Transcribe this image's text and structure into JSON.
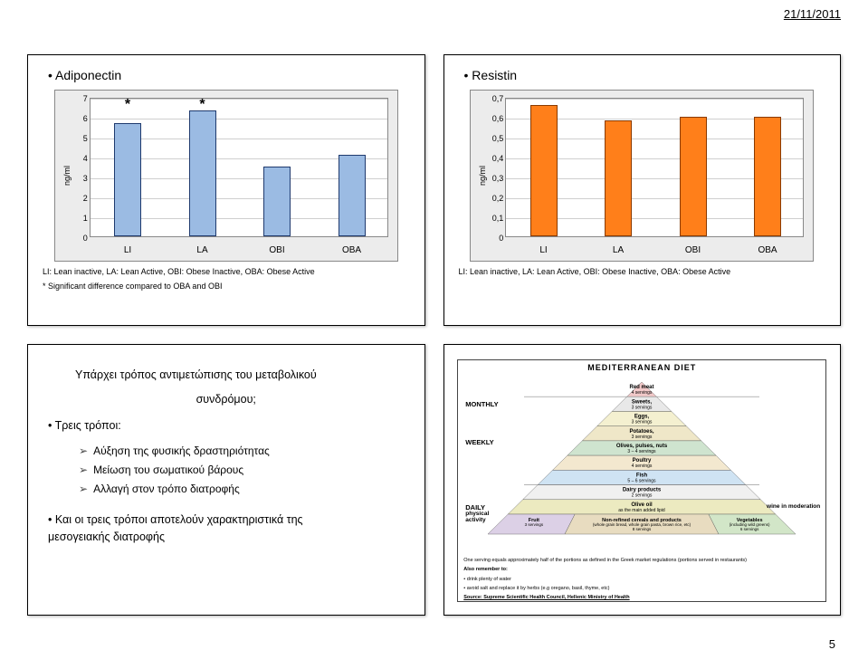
{
  "header_date": "21/11/2011",
  "page_number": "5",
  "slide_top_left": {
    "title": "Adiponectin",
    "ylabel": "ng/ml",
    "ylim": [
      0,
      7
    ],
    "ytick_step": 1,
    "categories": [
      "LI",
      "LA",
      "OBI",
      "OBA"
    ],
    "values": [
      5.7,
      6.3,
      3.5,
      4.1
    ],
    "bar_color": "#9bbbe3",
    "bar_border": "#1f3a6e",
    "stars_at": [
      0,
      1
    ],
    "caption_1": "LI: Lean inactive, LA: Lean Active, OBI: Obese Inactive, OBA: Obese Active",
    "caption_2": "* Significant difference compared to OBA and OBI"
  },
  "slide_top_right": {
    "title": "Resistin",
    "ylabel": "ng/ml",
    "ylim": [
      0,
      0.7
    ],
    "ytick_step": 0.1,
    "ytick_labels": [
      "0",
      "0,1",
      "0,2",
      "0,3",
      "0,4",
      "0,5",
      "0,6",
      "0,7"
    ],
    "categories": [
      "LI",
      "LA",
      "OBI",
      "OBA"
    ],
    "values": [
      0.66,
      0.58,
      0.6,
      0.6
    ],
    "bar_color": "#ff7f1a",
    "bar_border": "#8a3a00",
    "caption_1": "LI: Lean inactive, LA: Lean Active, OBI: Obese Inactive, OBA: Obese Active"
  },
  "slide_bottom_left": {
    "heading_1": "Υπάρχει τρόπος αντιμετώπισης του μεταβολικού",
    "heading_2": "συνδρόμου;",
    "bullet_1": "Τρεις τρόποι:",
    "items": [
      "Αύξηση της φυσικής δραστηριότητας",
      "Μείωση του σωματικού βάρους",
      "Αλλαγή στον τρόπο διατροφής"
    ],
    "bullet_2": "Και οι τρεις τρόποι αποτελούν χαρακτηριστικά της μεσογειακής διατροφής"
  },
  "slide_bottom_right": {
    "title": "MEDITERRANEAN DIET",
    "freq": {
      "monthly": "MONTHLY",
      "weekly": "WEEKLY",
      "daily": "DAILY"
    },
    "side_right": "wine in moderation",
    "side_left": "physical activity",
    "tiers": [
      {
        "label": "Red meat",
        "sub": "4 servings",
        "fill": "#f2c9c9"
      },
      {
        "label": "Sweets,",
        "sub": "3 servings",
        "fill": "#e8e8e8"
      },
      {
        "label": "Eggs,",
        "sub": "3 servings",
        "fill": "#f4f0d0"
      },
      {
        "label": "Potatoes,",
        "sub": "3 servings",
        "fill": "#efe7c8"
      },
      {
        "label": "Olives, pulses, nuts",
        "sub": "3 – 4 servings",
        "fill": "#cfe4cf"
      },
      {
        "label": "Poultry",
        "sub": "4 servings",
        "fill": "#f3e8cf"
      },
      {
        "label": "Fish",
        "sub": "5 – 6 servings",
        "fill": "#cfe3f3"
      },
      {
        "label": "Dairy products",
        "sub": "2 servings",
        "fill": "#f0f0f0"
      },
      {
        "label": "Olive oil",
        "sub": "as the main added lipid",
        "fill": "#eceac0"
      }
    ],
    "base_left": {
      "label": "Fruit",
      "sub": "3 servings",
      "fill": "#dcd0e6"
    },
    "base_center": {
      "label": "Non-refined cereals and products",
      "sub": "(whole grain bread, whole grain pasta, brown rice, etc)\n8 servings",
      "fill": "#e8dcc0"
    },
    "base_right": {
      "label": "Vegetables",
      "sub": "(including wild greens)\n6 servings",
      "fill": "#d2e6c8"
    },
    "foot_1": "One serving equals approximately half of the portions as defined in the Greek market regulations (portions served in restaurants)",
    "foot_2": "Also remember to:",
    "foot_3": "•  drink plenty of water",
    "foot_4": "•  avoid salt and replace it by herbs (e.g oregano, basil, thyme, etc)",
    "foot_5": "Source: Supreme Scientific Health Council, Hellenic Ministry of Health"
  }
}
